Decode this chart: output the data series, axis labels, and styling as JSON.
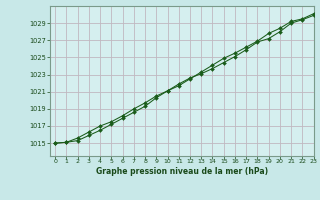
{
  "title": "Graphe pression niveau de la mer (hPa)",
  "background_color": "#c8e8e8",
  "plot_bg_color": "#d5efef",
  "line_color": "#1a5c1a",
  "marker_color": "#1a5c1a",
  "grid_color": "#c0b8c0",
  "xlabel_color": "#1a4a1a",
  "ylabel_ticks": [
    1015,
    1017,
    1019,
    1021,
    1023,
    1025,
    1027,
    1029
  ],
  "ylim": [
    1013.5,
    1031.0
  ],
  "xlim": [
    -0.5,
    23.0
  ],
  "xticks": [
    0,
    1,
    2,
    3,
    4,
    5,
    6,
    7,
    8,
    9,
    10,
    11,
    12,
    13,
    14,
    15,
    16,
    17,
    18,
    19,
    20,
    21,
    22,
    23
  ],
  "hours": [
    0,
    1,
    2,
    3,
    4,
    5,
    6,
    7,
    8,
    9,
    10,
    11,
    12,
    13,
    14,
    15,
    16,
    17,
    18,
    19,
    20,
    21,
    22,
    23
  ],
  "line1": [
    1015.0,
    1015.1,
    1015.3,
    1015.9,
    1016.5,
    1017.2,
    1017.9,
    1018.6,
    1019.3,
    1020.3,
    1021.1,
    1021.9,
    1022.6,
    1023.1,
    1023.7,
    1024.4,
    1025.1,
    1025.9,
    1026.8,
    1027.2,
    1028.0,
    1029.0,
    1029.4,
    1029.9
  ],
  "line2": [
    1015.0,
    1015.1,
    1015.6,
    1016.3,
    1017.0,
    1017.5,
    1018.2,
    1019.0,
    1019.7,
    1020.5,
    1021.1,
    1021.7,
    1022.5,
    1023.3,
    1024.1,
    1024.9,
    1025.5,
    1026.2,
    1026.9,
    1027.8,
    1028.4,
    1029.2,
    1029.5,
    1030.1
  ]
}
